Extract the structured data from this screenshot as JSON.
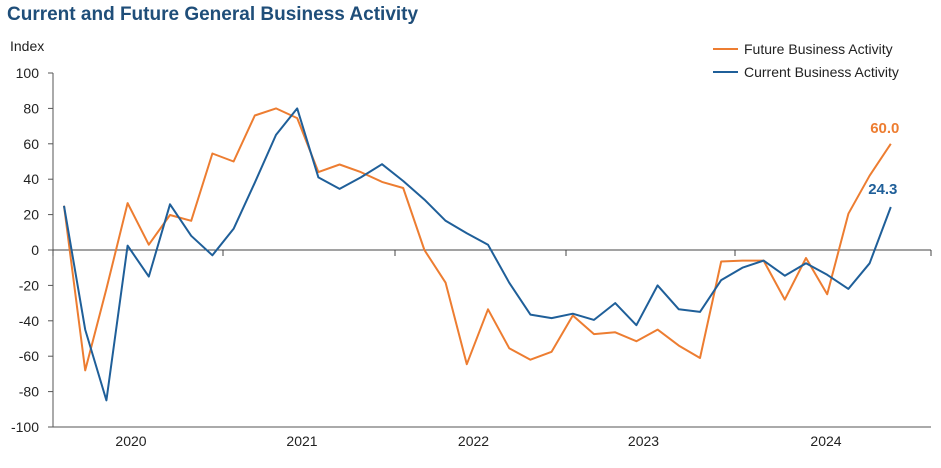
{
  "chart_data": {
    "type": "line",
    "title": "Current and Future General Business Activity",
    "ylabel": "Index",
    "ylim": [
      -100,
      100
    ],
    "yticks": [
      100,
      80,
      60,
      40,
      20,
      0,
      -20,
      -40,
      -60,
      -80,
      -100
    ],
    "year_labels": [
      "2020",
      "2021",
      "2022",
      "2023",
      "2024"
    ],
    "legend_position": "top-right",
    "series": [
      {
        "name": "Future Business Activity",
        "color": "#ed7d31",
        "end_label": "60.0",
        "values": [
          25.0,
          -68.0,
          -22.0,
          26.5,
          3.0,
          19.8,
          16.5,
          54.5,
          50.0,
          76.0,
          80.0,
          74.5,
          44.0,
          48.3,
          44.0,
          38.5,
          35.0,
          0.0,
          -18.5,
          -64.5,
          -33.5,
          -55.5,
          -62.0,
          -57.5,
          -37.0,
          -47.5,
          -46.5,
          -51.5,
          -45.0,
          -54.0,
          -61.0,
          -6.5,
          -6.0,
          -6.0,
          -28.0,
          -4.5,
          -25.0,
          20.5,
          42.0,
          60.0
        ]
      },
      {
        "name": "Current Business Activity",
        "color": "#1f5f99",
        "end_label": "24.3",
        "values": [
          25.0,
          -45.0,
          -85.0,
          2.5,
          -15.0,
          25.8,
          8.0,
          -3.0,
          12.0,
          38.0,
          65.0,
          80.0,
          41.0,
          34.5,
          41.0,
          48.5,
          39.0,
          28.5,
          16.5,
          9.5,
          3.0,
          -18.5,
          -36.5,
          -38.5,
          -36.0,
          -39.5,
          -30.0,
          -42.5,
          -20.0,
          -33.5,
          -35.0,
          -17.0,
          -10.0,
          -6.0,
          -14.5,
          -7.5,
          -14.0,
          -22.0,
          -7.5,
          24.3
        ]
      }
    ]
  }
}
